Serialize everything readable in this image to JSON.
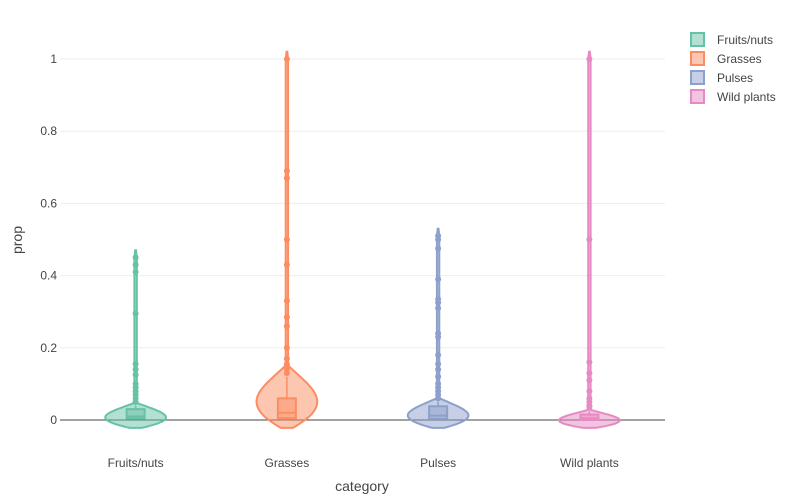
{
  "chart_data": {
    "type": "violin",
    "xlabel": "category",
    "ylabel": "prop",
    "ylim": [
      -0.04,
      1.08
    ],
    "yticks": [
      0,
      0.2,
      0.4,
      0.6,
      0.8,
      1
    ],
    "ytick_labels": [
      "0",
      "0.2",
      "0.4",
      "0.6",
      "0.8",
      "1"
    ],
    "categories": [
      "Fruits/nuts",
      "Grasses",
      "Pulses",
      "Wild plants"
    ],
    "grid": true,
    "legend_position": "top-right",
    "series": [
      {
        "name": "Fruits/nuts",
        "color": "#66c2a5",
        "fill": "rgba(102,194,165,0.5)",
        "min": 0,
        "max": 0.45,
        "q1": 0.004,
        "median": 0.01,
        "q3": 0.03,
        "whisker_high": 0.04,
        "points": [
          0.45,
          0.43,
          0.41,
          0.295,
          0.155,
          0.14,
          0.125,
          0.1,
          0.09,
          0.08,
          0.07,
          0.06,
          0.05
        ]
      },
      {
        "name": "Grasses",
        "color": "#fc8d62",
        "fill": "rgba(252,141,98,0.5)",
        "min": 0,
        "max": 1,
        "q1": 0.005,
        "median": 0.02,
        "q3": 0.06,
        "whisker_high": 0.12,
        "points": [
          1.0,
          0.69,
          0.67,
          0.5,
          0.43,
          0.33,
          0.285,
          0.26,
          0.2,
          0.17,
          0.155,
          0.14,
          0.13
        ]
      },
      {
        "name": "Pulses",
        "color": "#8da0cb",
        "fill": "rgba(141,160,203,0.5)",
        "min": 0,
        "max": 0.51,
        "q1": 0.003,
        "median": 0.012,
        "q3": 0.038,
        "whisker_high": 0.05,
        "points": [
          0.51,
          0.5,
          0.475,
          0.39,
          0.335,
          0.325,
          0.31,
          0.24,
          0.23,
          0.18,
          0.155,
          0.14,
          0.12,
          0.1,
          0.09,
          0.08,
          0.07,
          0.06
        ]
      },
      {
        "name": "Wild plants",
        "color": "#e78ac3",
        "fill": "rgba(231,138,195,0.5)",
        "min": 0,
        "max": 1,
        "q1": 0.0,
        "median": 0.005,
        "q3": 0.015,
        "whisker_high": 0.025,
        "points": [
          1.0,
          0.5,
          0.16,
          0.13,
          0.11,
          0.08,
          0.06,
          0.05,
          0.04,
          0.035
        ]
      }
    ]
  }
}
